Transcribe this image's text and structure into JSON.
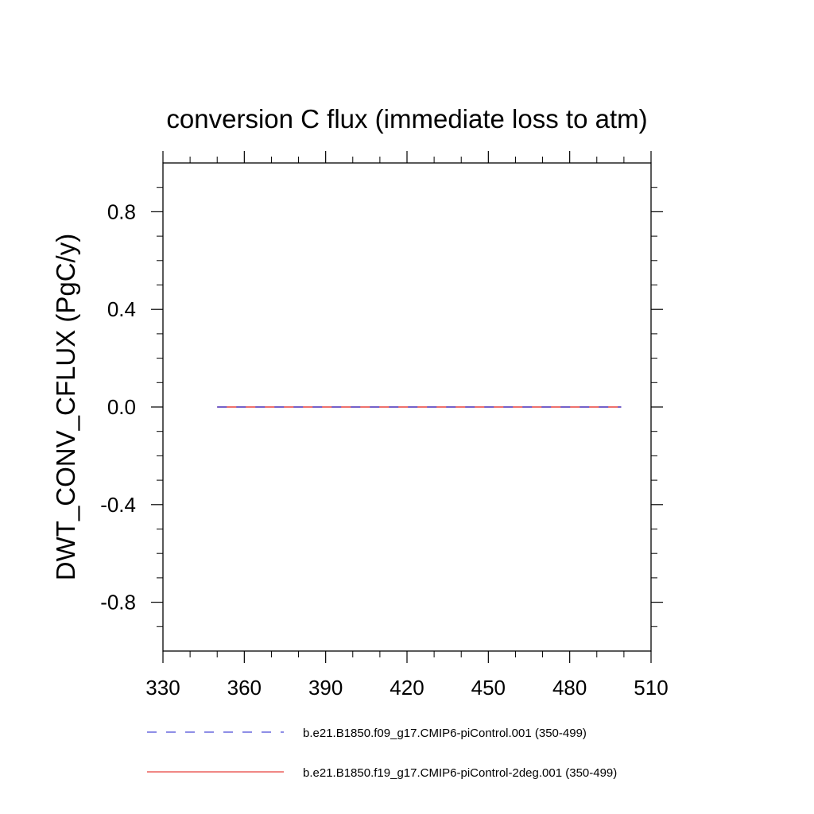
{
  "chart_data": {
    "type": "line",
    "title": "conversion C flux (immediate loss to atm)",
    "xlabel": "",
    "ylabel": "DWT_CONV_CFLUX  (PgC/y)",
    "xlim": [
      330,
      510
    ],
    "ylim": [
      -1.0,
      1.0
    ],
    "x_ticks": [
      "330",
      "360",
      "390",
      "420",
      "450",
      "480",
      "510"
    ],
    "y_ticks": [
      "-0.8",
      "-0.4",
      "0.0",
      "0.4",
      "0.8"
    ],
    "grid": false,
    "legend_position": "bottom",
    "series": [
      {
        "name": "b.e21.B1850.f09_g17.CMIP6-piControl.001 (350-499)",
        "color": "#4b4bd6",
        "style": "dashed",
        "x": [
          350,
          499
        ],
        "values": [
          0.0,
          0.0
        ]
      },
      {
        "name": "b.e21.B1850.f19_g17.CMIP6-piControl-2deg.001 (350-499)",
        "color": "#e8423c",
        "style": "solid",
        "x": [
          350,
          499
        ],
        "values": [
          0.0,
          0.0
        ]
      }
    ]
  }
}
